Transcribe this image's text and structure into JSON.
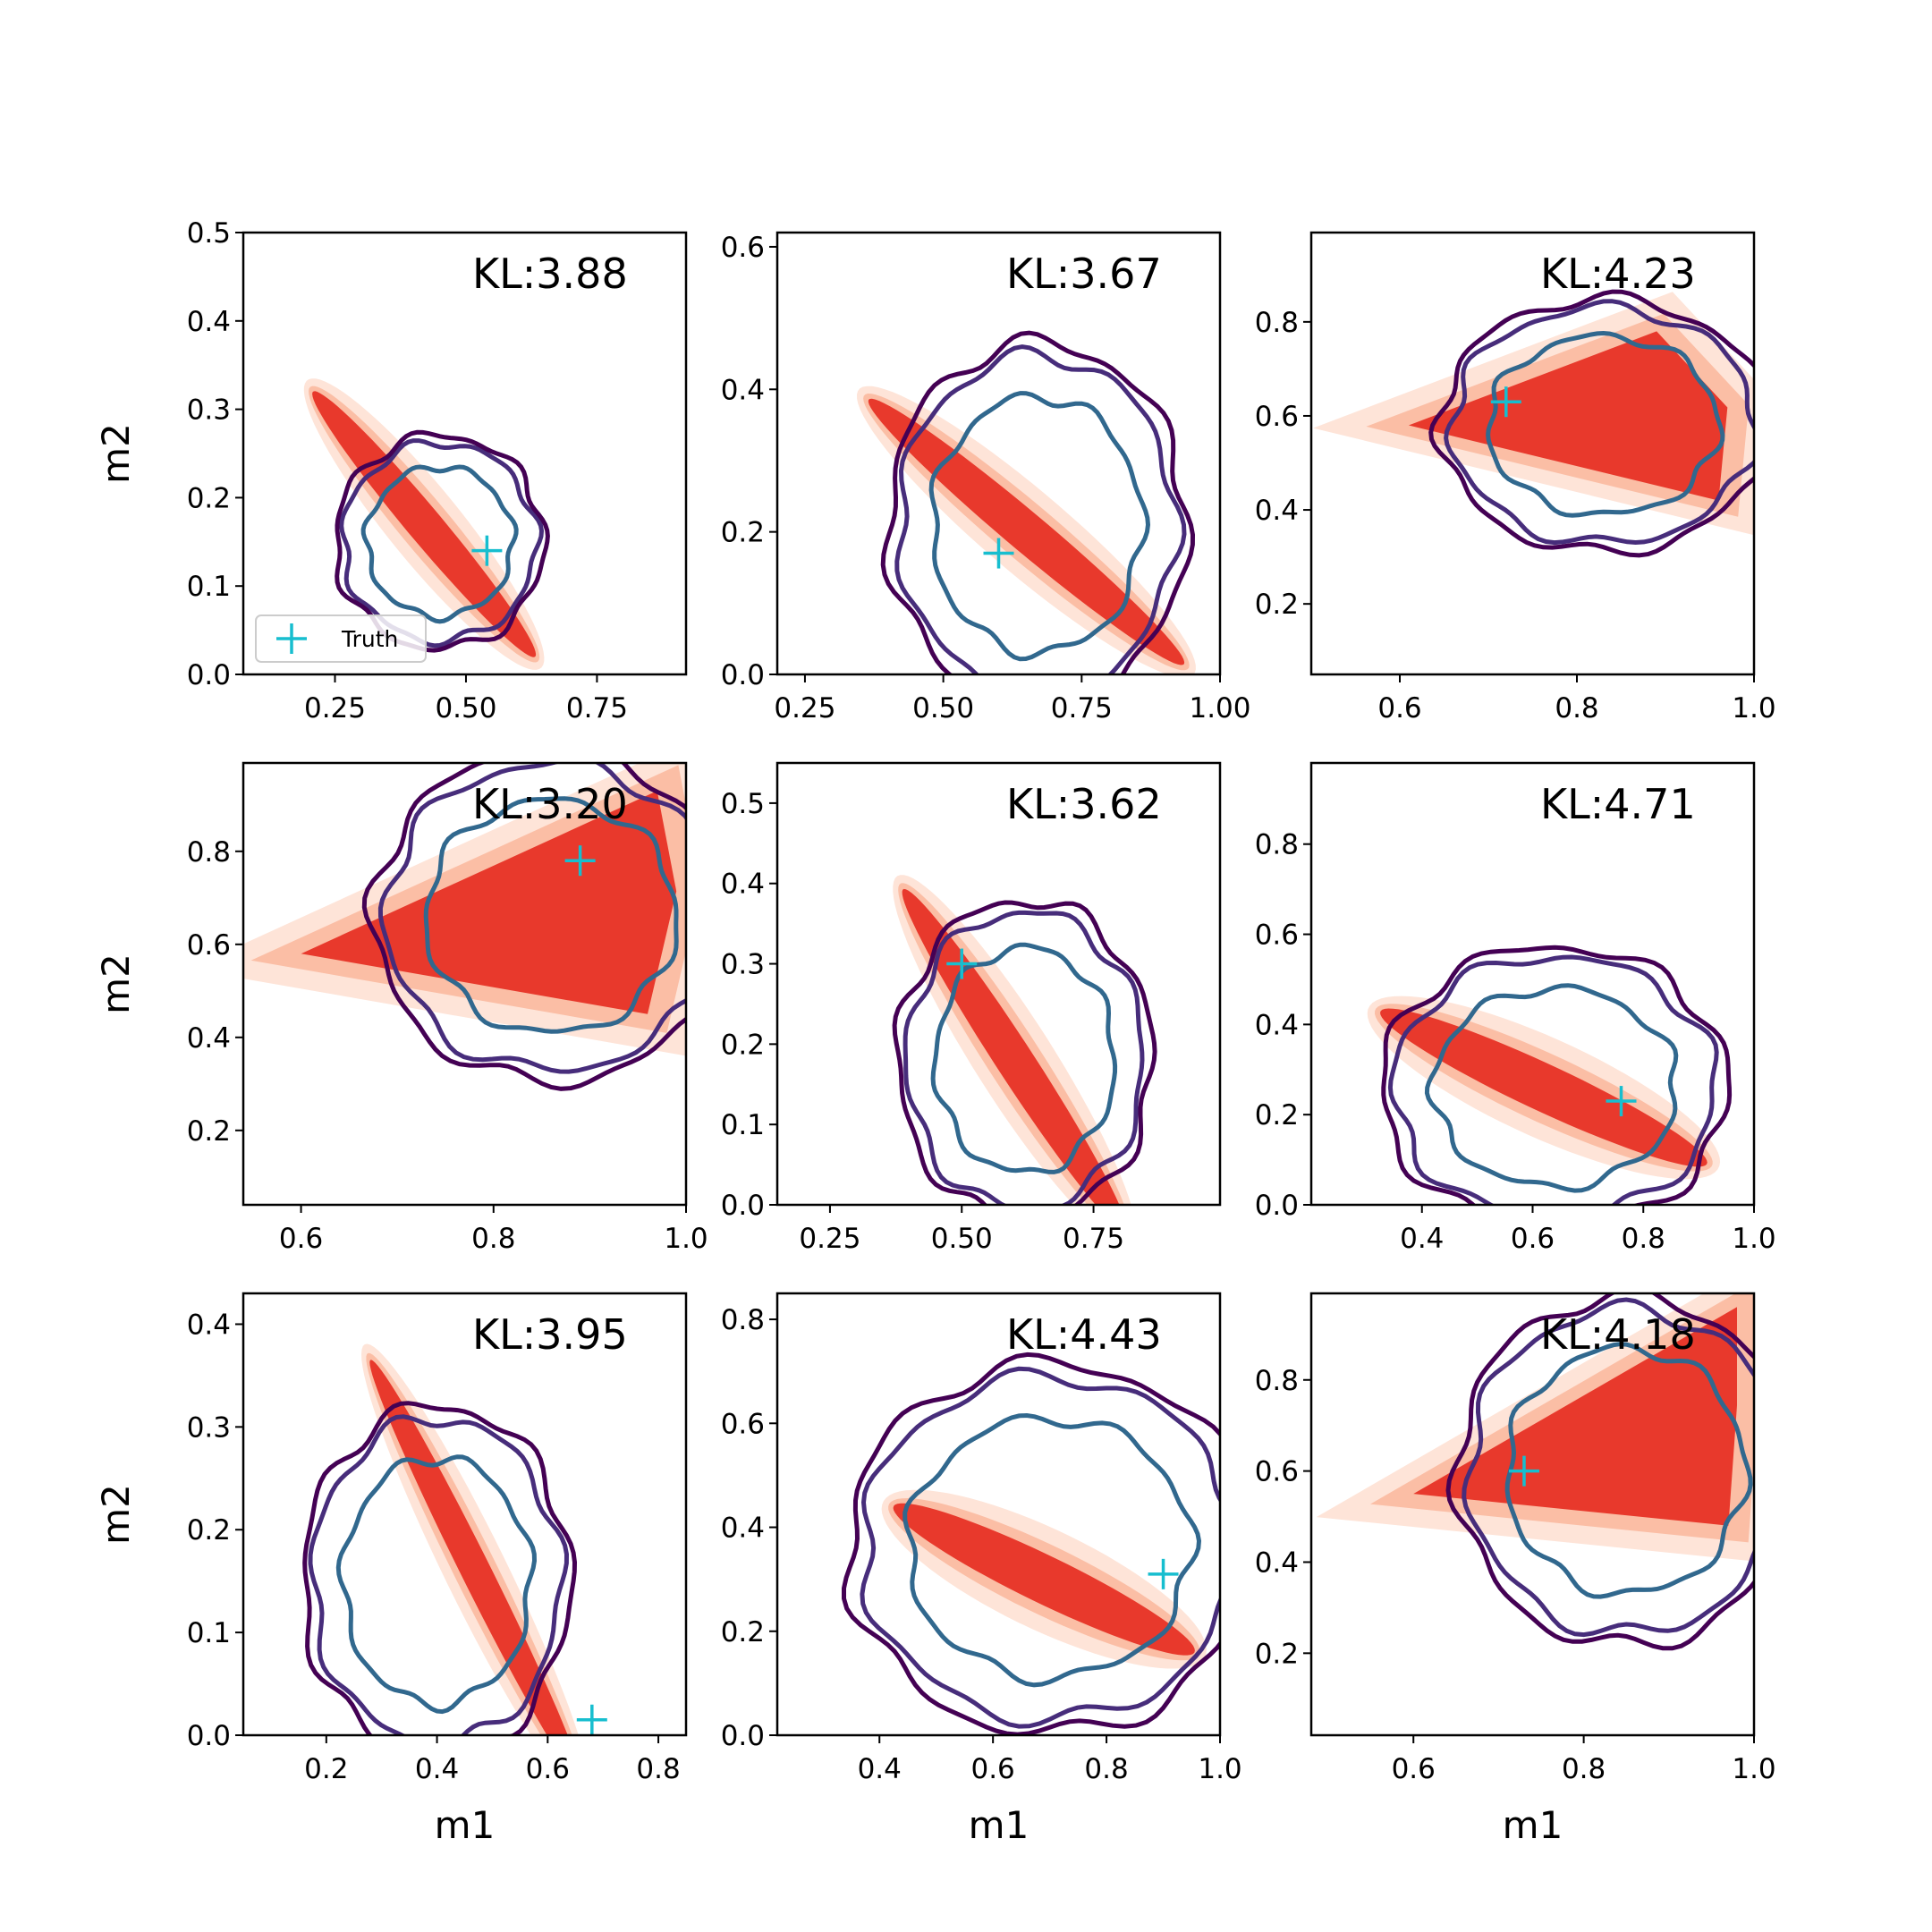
{
  "colors": {
    "fill_outer": "#fee4d8",
    "fill_mid": "#fbbea5",
    "fill_inner": "#e8392c",
    "contour_outer": "#440154",
    "contour_mid": "#472d7b",
    "contour_inner": "#31688e",
    "truth_marker": "#17becf",
    "axes": "#000000"
  },
  "legend": {
    "label": "Truth",
    "icon": "plus-marker-icon"
  },
  "chart_data": [
    {
      "type": "contour",
      "annotation": "KL:3.88",
      "xlabel": "",
      "ylabel": "m2",
      "xlim": [
        0.075,
        0.92
      ],
      "ylim": [
        0.0,
        0.5
      ],
      "xticks": [
        0.25,
        0.5,
        0.75
      ],
      "xtick_labels": [
        "0.25",
        "0.50",
        "0.75"
      ],
      "yticks": [
        0.0,
        0.1,
        0.2,
        0.3,
        0.4,
        0.5
      ],
      "ytick_labels": [
        "0.0",
        "0.1",
        "0.2",
        "0.3",
        "0.4",
        "0.5"
      ],
      "truth": {
        "x": 0.54,
        "y": 0.14
      },
      "legend_shown": true,
      "shape": "diagonal",
      "filled": {
        "center": [
          0.42,
          0.17
        ],
        "a": 0.26,
        "b": 0.025,
        "angle_deg": -35
      },
      "contours": {
        "center": [
          0.45,
          0.15
        ],
        "rx": 0.14,
        "ry": 0.085
      }
    },
    {
      "type": "contour",
      "annotation": "KL:3.67",
      "xlabel": "",
      "ylabel": "",
      "xlim": [
        0.2,
        1.0
      ],
      "ylim": [
        0.0,
        0.62
      ],
      "xticks": [
        0.25,
        0.5,
        0.75,
        1.0
      ],
      "xtick_labels": [
        "0.25",
        "0.50",
        "0.75",
        "1.00"
      ],
      "yticks": [
        0.0,
        0.2,
        0.4,
        0.6
      ],
      "ytick_labels": [
        "0.0",
        "0.2",
        "0.4",
        "0.6"
      ],
      "truth": {
        "x": 0.6,
        "y": 0.17
      },
      "legend_shown": false,
      "shape": "diagonal",
      "filled": {
        "center": [
          0.65,
          0.2
        ],
        "a": 0.34,
        "b": 0.03,
        "angle_deg": -33
      },
      "contours": {
        "center": [
          0.67,
          0.21
        ],
        "rx": 0.19,
        "ry": 0.18
      }
    },
    {
      "type": "contour",
      "annotation": "KL:4.23",
      "xlabel": "",
      "ylabel": "",
      "xlim": [
        0.5,
        1.0
      ],
      "ylim": [
        0.05,
        0.99
      ],
      "xticks": [
        0.6,
        0.8,
        1.0
      ],
      "xtick_labels": [
        "0.6",
        "0.8",
        "1.0"
      ],
      "yticks": [
        0.2,
        0.4,
        0.6,
        0.8
      ],
      "ytick_labels": [
        "0.2",
        "0.4",
        "0.6",
        "0.8"
      ],
      "truth": {
        "x": 0.72,
        "y": 0.63
      },
      "legend_shown": false,
      "shape": "triangle",
      "filled": {
        "apex": [
          0.61,
          0.58
        ],
        "top": [
          0.89,
          0.78
        ],
        "bottom": [
          0.96,
          0.42
        ],
        "right": 0.97
      },
      "contours": {
        "center": [
          0.83,
          0.58
        ],
        "rx": 0.13,
        "ry": 0.19
      }
    },
    {
      "type": "contour",
      "annotation": "KL:3.20",
      "xlabel": "",
      "ylabel": "m2",
      "xlim": [
        0.54,
        1.0
      ],
      "ylim": [
        0.04,
        0.99
      ],
      "xticks": [
        0.6,
        0.8,
        1.0
      ],
      "xtick_labels": [
        "0.6",
        "0.8",
        "1.0"
      ],
      "yticks": [
        0.2,
        0.4,
        0.6,
        0.8
      ],
      "ytick_labels": [
        "0.2",
        "0.4",
        "0.6",
        "0.8"
      ],
      "truth": {
        "x": 0.89,
        "y": 0.78
      },
      "legend_shown": false,
      "shape": "triangle",
      "filled": {
        "apex": [
          0.6,
          0.58
        ],
        "top": [
          0.97,
          0.93
        ],
        "bottom": [
          0.96,
          0.45
        ],
        "right": 0.99
      },
      "contours": {
        "center": [
          0.86,
          0.66
        ],
        "rx": 0.13,
        "ry": 0.25
      }
    },
    {
      "type": "contour",
      "annotation": "KL:3.62",
      "xlabel": "",
      "ylabel": "",
      "xlim": [
        0.15,
        0.99
      ],
      "ylim": [
        0.0,
        0.55
      ],
      "xticks": [
        0.25,
        0.5,
        0.75
      ],
      "xtick_labels": [
        "0.25",
        "0.50",
        "0.75"
      ],
      "yticks": [
        0.0,
        0.1,
        0.2,
        0.3,
        0.4,
        0.5
      ],
      "ytick_labels": [
        "0.0",
        "0.1",
        "0.2",
        "0.3",
        "0.4",
        "0.5"
      ],
      "truth": {
        "x": 0.5,
        "y": 0.3
      },
      "legend_shown": false,
      "shape": "diagonal",
      "filled": {
        "center": [
          0.6,
          0.18
        ],
        "a": 0.3,
        "b": 0.03,
        "angle_deg": -45
      },
      "contours": {
        "center": [
          0.62,
          0.18
        ],
        "rx": 0.17,
        "ry": 0.14
      }
    },
    {
      "type": "contour",
      "annotation": "KL:4.71",
      "xlabel": "",
      "ylabel": "",
      "xlim": [
        0.2,
        1.0
      ],
      "ylim": [
        0.0,
        0.98
      ],
      "xticks": [
        0.4,
        0.6,
        0.8,
        1.0
      ],
      "xtick_labels": [
        "0.4",
        "0.6",
        "0.8",
        "1.0"
      ],
      "yticks": [
        0.0,
        0.2,
        0.4,
        0.6,
        0.8
      ],
      "ytick_labels": [
        "0.0",
        "0.2",
        "0.4",
        "0.6",
        "0.8"
      ],
      "truth": {
        "x": 0.76,
        "y": 0.23
      },
      "legend_shown": false,
      "shape": "diagonal",
      "filled": {
        "center": [
          0.62,
          0.26
        ],
        "a": 0.34,
        "b": 0.05,
        "angle_deg": -30
      },
      "contours": {
        "center": [
          0.64,
          0.26
        ],
        "rx": 0.22,
        "ry": 0.22
      }
    },
    {
      "type": "contour",
      "annotation": "KL:3.95",
      "xlabel": "m1",
      "ylabel": "m2",
      "xlim": [
        0.05,
        0.85
      ],
      "ylim": [
        0.0,
        0.43
      ],
      "xticks": [
        0.2,
        0.4,
        0.6,
        0.8
      ],
      "xtick_labels": [
        "0.2",
        "0.4",
        "0.6",
        "0.8"
      ],
      "yticks": [
        0.0,
        0.1,
        0.2,
        0.3,
        0.4
      ],
      "ytick_labels": [
        "0.0",
        "0.1",
        "0.2",
        "0.3",
        "0.4"
      ],
      "truth": {
        "x": 0.68,
        "y": 0.015
      },
      "legend_shown": false,
      "shape": "diagonal",
      "filled": {
        "center": [
          0.47,
          0.16
        ],
        "a": 0.28,
        "b": 0.022,
        "angle_deg": -47
      },
      "contours": {
        "center": [
          0.4,
          0.15
        ],
        "rx": 0.17,
        "ry": 0.12
      }
    },
    {
      "type": "contour",
      "annotation": "KL:4.43",
      "xlabel": "m1",
      "ylabel": "",
      "xlim": [
        0.22,
        1.0
      ],
      "ylim": [
        0.0,
        0.85
      ],
      "xticks": [
        0.4,
        0.6,
        0.8,
        1.0
      ],
      "xtick_labels": [
        "0.4",
        "0.6",
        "0.8",
        "1.0"
      ],
      "yticks": [
        0.0,
        0.2,
        0.4,
        0.6,
        0.8
      ],
      "ytick_labels": [
        "0.0",
        "0.2",
        "0.4",
        "0.6",
        "0.8"
      ],
      "truth": {
        "x": 0.9,
        "y": 0.31
      },
      "legend_shown": false,
      "shape": "diagonal",
      "filled": {
        "center": [
          0.69,
          0.3
        ],
        "a": 0.3,
        "b": 0.045,
        "angle_deg": -28
      },
      "contours": {
        "center": [
          0.7,
          0.36
        ],
        "rx": 0.25,
        "ry": 0.25
      }
    },
    {
      "type": "contour",
      "annotation": "KL:4.18",
      "xlabel": "m1",
      "ylabel": "",
      "xlim": [
        0.48,
        1.0
      ],
      "ylim": [
        0.02,
        0.99
      ],
      "xticks": [
        0.6,
        0.8,
        1.0
      ],
      "xtick_labels": [
        "0.6",
        "0.8",
        "1.0"
      ],
      "yticks": [
        0.2,
        0.4,
        0.6,
        0.8
      ],
      "ytick_labels": [
        "0.2",
        "0.4",
        "0.6",
        "0.8"
      ],
      "truth": {
        "x": 0.73,
        "y": 0.6
      },
      "legend_shown": false,
      "shape": "triangle",
      "filled": {
        "apex": [
          0.6,
          0.55
        ],
        "top": [
          0.98,
          0.96
        ],
        "bottom": [
          0.97,
          0.48
        ],
        "right": 0.98
      },
      "contours": {
        "center": [
          0.85,
          0.6
        ],
        "rx": 0.14,
        "ry": 0.27
      }
    }
  ]
}
